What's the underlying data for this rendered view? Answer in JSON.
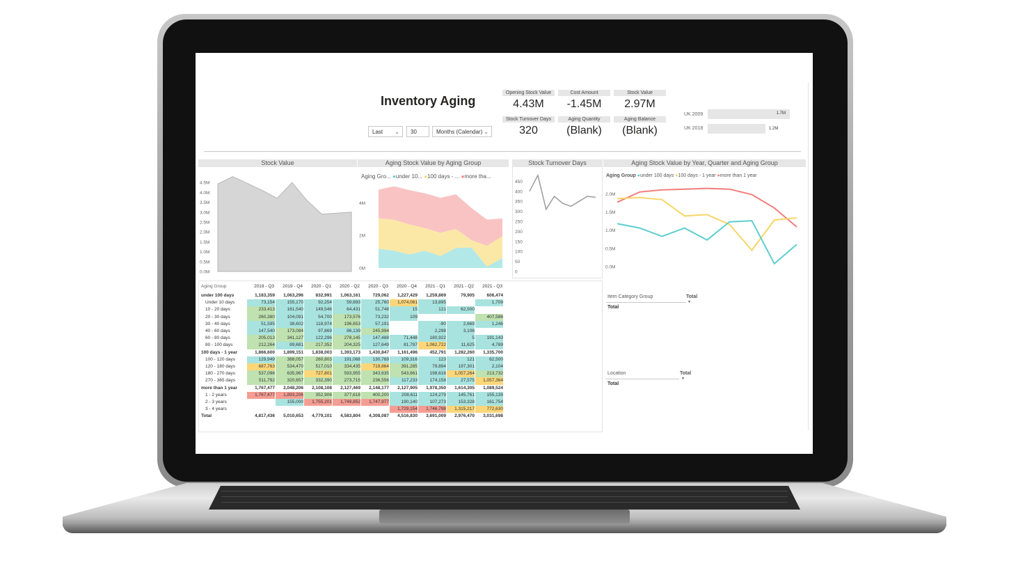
{
  "dashboard": {
    "title": "Inventory Aging",
    "filter": {
      "relative": "Last",
      "count": "30",
      "unit": "Months (Calendar)"
    }
  },
  "kpis": [
    {
      "label": "Opening Stock Value",
      "value": "4.43M"
    },
    {
      "label": "Cost Amount",
      "value": "-1.45M"
    },
    {
      "label": "Stock Value",
      "value": "2.97M"
    },
    {
      "label": "Stock Turnover Days",
      "value": "320"
    },
    {
      "label": "Aging Quantity",
      "value": "(Blank)"
    },
    {
      "label": "Aging Balance",
      "value": "(Blank)"
    }
  ],
  "company_bars": [
    {
      "label": "UK 2009",
      "value": "1.7M",
      "amount": 1.7
    },
    {
      "label": "UK 2018",
      "value": "1.2M",
      "amount": 1.2
    }
  ],
  "visual_titles": {
    "stock_value": "Stock Value",
    "aging_by_group": "Aging Stock Value by Aging Group",
    "turnover": "Stock Turnover Days",
    "by_year": "Aging Stock Value by Year, Quarter and Aging Group"
  },
  "legend_short": {
    "title": "Aging Gro...",
    "items": [
      "under 10...",
      "100 days - ...",
      "more tha..."
    ]
  },
  "legend_full": {
    "title": "Aging Group",
    "items": [
      "under 100 days",
      "100 days - 1 year",
      "more than 1 year"
    ]
  },
  "colors": {
    "teal": "#5ecdcd",
    "yellow": "#f7d567",
    "red": "#f47c7c",
    "grey": "#cfcfcf"
  },
  "chart_data": [
    {
      "type": "area",
      "title": "Stock Value",
      "y_ticks": [
        "0.0M",
        "0.5M",
        "1.0M",
        "1.5M",
        "2.0M",
        "2.5M",
        "3.0M",
        "3.5M",
        "4.0M",
        "4.5M"
      ],
      "ylim": [
        0,
        5.0
      ],
      "values": [
        4.43,
        4.8,
        4.45,
        4.1,
        3.7,
        4.5,
        3.6,
        2.9,
        2.95,
        3.0
      ]
    },
    {
      "type": "area",
      "title": "Aging Stock Value by Aging Group",
      "y_ticks": [
        "0M",
        "2M",
        "4M"
      ],
      "ylim": [
        0,
        5.0
      ],
      "series": [
        {
          "name": "under 100 days",
          "values": [
            1.18,
            1.06,
            0.83,
            1.06,
            0.73,
            1.23,
            1.26,
            0.08,
            0.61
          ]
        },
        {
          "name": "100 days - 1 year",
          "values": [
            1.87,
            1.9,
            1.84,
            1.39,
            1.43,
            1.16,
            0.45,
            1.28,
            1.34
          ]
        },
        {
          "name": "more than 1 year",
          "values": [
            1.77,
            2.05,
            2.11,
            2.13,
            2.15,
            2.13,
            1.98,
            1.61,
            1.09
          ]
        }
      ]
    },
    {
      "type": "line",
      "title": "Stock Turnover Days",
      "y_ticks": [
        "0",
        "50",
        "100",
        "150",
        "200",
        "250",
        "300",
        "350",
        "400",
        "450"
      ],
      "ylim": [
        0,
        500
      ],
      "values": [
        400,
        480,
        310,
        375,
        340,
        325,
        350,
        375,
        370
      ]
    },
    {
      "type": "line",
      "title": "Aging Stock Value by Year, Quarter and Aging Group",
      "y_ticks": [
        "0.0M",
        "0.5M",
        "1.0M",
        "1.5M",
        "2.0M"
      ],
      "ylim": [
        0,
        2.2
      ],
      "series": [
        {
          "name": "under 100 days",
          "values": [
            1.18,
            1.06,
            0.83,
            1.06,
            0.73,
            1.23,
            1.26,
            0.08,
            0.61
          ]
        },
        {
          "name": "100 days - 1 year",
          "values": [
            1.87,
            1.9,
            1.84,
            1.39,
            1.43,
            1.16,
            0.45,
            1.28,
            1.34
          ]
        },
        {
          "name": "more than 1 year",
          "values": [
            1.77,
            2.05,
            2.11,
            2.13,
            2.15,
            2.13,
            1.98,
            1.61,
            1.09
          ]
        }
      ]
    }
  ],
  "matrix": {
    "corner": "Aging Group",
    "columns": [
      "2019 - Q3",
      "2019 - Q4",
      "2020 - Q1",
      "2020 - Q2",
      "2020 - Q3",
      "2020 - Q4",
      "2021 - Q1",
      "2021 - Q2",
      "2021 - Q3"
    ],
    "rows": [
      {
        "label": "under 100 days",
        "bold": true,
        "cells": [
          "1,183,359",
          "1,063,296",
          "832,991",
          "1,063,161",
          "729,062",
          "1,227,429",
          "1,259,869",
          "79,905",
          "606,474"
        ],
        "bg": [
          "",
          "",
          "",
          "",
          "",
          "",
          "",
          "",
          ""
        ]
      },
      {
        "label": "Under 10 days",
        "bold": false,
        "cells": [
          "73,154",
          "155,170",
          "92,254",
          "59,693",
          "25,760",
          "1,074,061",
          "13,895",
          "",
          "1,709"
        ],
        "bg": [
          "t",
          "t",
          "t",
          "t",
          "t",
          "y",
          "t",
          "",
          "t"
        ]
      },
      {
        "label": "10 - 20 days",
        "bold": false,
        "cells": [
          "233,413",
          "161,540",
          "149,546",
          "64,431",
          "51,748",
          "15",
          "121",
          "62,500",
          ""
        ],
        "bg": [
          "g",
          "t",
          "t",
          "t",
          "t",
          "t",
          "t",
          "t",
          ""
        ]
      },
      {
        "label": "20 - 30 days",
        "bold": false,
        "cells": [
          "260,380",
          "104,091",
          "54,700",
          "173,576",
          "73,232",
          "109",
          "",
          "",
          "407,586"
        ],
        "bg": [
          "g",
          "t",
          "t",
          "g",
          "t",
          "t",
          "",
          "",
          "g"
        ]
      },
      {
        "label": "30 - 40 days",
        "bold": false,
        "cells": [
          "51,595",
          "38,602",
          "118,974",
          "196,653",
          "57,191",
          "",
          "-90",
          "2,669",
          "1,246"
        ],
        "bg": [
          "t",
          "t",
          "t",
          "g",
          "t",
          "",
          "t",
          "t",
          "t"
        ]
      },
      {
        "label": "40 - 60 days",
        "bold": false,
        "cells": [
          "147,540",
          "173,084",
          "97,869",
          "86,139",
          "245,994",
          "",
          "2,298",
          "3,106",
          ""
        ],
        "bg": [
          "t",
          "g",
          "t",
          "t",
          "g",
          "",
          "t",
          "t",
          ""
        ]
      },
      {
        "label": "60 - 80 days",
        "bold": false,
        "cells": [
          "205,013",
          "341,127",
          "122,296",
          "278,145",
          "147,488",
          "71,448",
          "180,922",
          "5",
          "191,143"
        ],
        "bg": [
          "g",
          "g",
          "t",
          "g",
          "t",
          "t",
          "t",
          "t",
          "t"
        ]
      },
      {
        "label": "80 - 100 days",
        "bold": false,
        "cells": [
          "212,264",
          "89,681",
          "217,352",
          "204,325",
          "127,649",
          "81,797",
          "1,062,722",
          "11,625",
          "4,789"
        ],
        "bg": [
          "g",
          "t",
          "g",
          "g",
          "t",
          "t",
          "y",
          "t",
          "t"
        ]
      },
      {
        "label": "100 days - 1 year",
        "bold": true,
        "cells": [
          "1,866,600",
          "1,899,151",
          "1,838,003",
          "1,393,173",
          "1,430,847",
          "1,161,496",
          "452,791",
          "1,282,260",
          "1,335,700"
        ],
        "bg": [
          "",
          "",
          "",
          "",
          "",
          "",
          "",
          "",
          ""
        ]
      },
      {
        "label": "100 - 120 days",
        "bold": false,
        "cells": [
          "129,949",
          "388,057",
          "260,803",
          "191,068",
          "130,789",
          "109,316",
          "123",
          "121",
          "62,500"
        ],
        "bg": [
          "t",
          "g",
          "g",
          "t",
          "t",
          "t",
          "t",
          "t",
          "t"
        ]
      },
      {
        "label": "120 - 180 days",
        "bold": false,
        "cells": [
          "687,763",
          "534,470",
          "517,010",
          "334,435",
          "719,864",
          "391,285",
          "79,894",
          "197,301",
          "2,104"
        ],
        "bg": [
          "y",
          "g",
          "g",
          "g",
          "y",
          "g",
          "t",
          "t",
          "t"
        ]
      },
      {
        "label": "180 - 270 days",
        "bold": false,
        "cells": [
          "537,096",
          "635,967",
          "727,801",
          "593,955",
          "343,635",
          "543,661",
          "198,616",
          "1,057,264",
          "213,732"
        ],
        "bg": [
          "g",
          "g",
          "y",
          "g",
          "g",
          "g",
          "t",
          "y",
          "g"
        ]
      },
      {
        "label": "270 - 365 days",
        "bold": false,
        "cells": [
          "511,792",
          "320,657",
          "332,390",
          "273,715",
          "236,556",
          "117,233",
          "174,158",
          "27,575",
          "1,057,364"
        ],
        "bg": [
          "g",
          "g",
          "g",
          "g",
          "g",
          "t",
          "t",
          "t",
          "y"
        ]
      },
      {
        "label": "more than 1 year",
        "bold": true,
        "cells": [
          "1,767,477",
          "2,048,206",
          "2,108,108",
          "2,127,469",
          "2,148,177",
          "2,127,905",
          "1,978,350",
          "1,614,305",
          "1,089,524"
        ],
        "bg": [
          "",
          "",
          "",
          "",
          "",
          "",
          "",
          "",
          ""
        ]
      },
      {
        "label": "1 - 2 years",
        "bold": false,
        "cells": [
          "1,767,477",
          "1,893,206",
          "352,906",
          "377,618",
          "400,200",
          "208,611",
          "124,279",
          "145,761",
          "155,139"
        ],
        "bg": [
          "r",
          "r",
          "g",
          "g",
          "g",
          "t",
          "t",
          "t",
          "t"
        ]
      },
      {
        "label": "2 - 3 years",
        "bold": false,
        "cells": [
          "",
          "155,000",
          "1,755,201",
          "1,749,852",
          "1,747,977",
          "190,140",
          "107,273",
          "153,328",
          "161,754"
        ],
        "bg": [
          "",
          "t",
          "r",
          "r",
          "r",
          "t",
          "t",
          "t",
          "t"
        ]
      },
      {
        "label": "3 - 4 years",
        "bold": false,
        "cells": [
          "",
          "",
          "",
          "",
          "",
          "1,729,154",
          "1,746,798",
          "1,315,217",
          "772,630"
        ],
        "bg": [
          "",
          "",
          "",
          "",
          "",
          "r",
          "r",
          "y",
          "y"
        ]
      },
      {
        "label": "Total",
        "bold": true,
        "cells": [
          "4,817,436",
          "5,010,653",
          "4,779,101",
          "4,583,804",
          "4,308,087",
          "4,516,830",
          "3,691,009",
          "2,976,470",
          "3,031,698"
        ],
        "bg": [
          "",
          "",
          "",
          "",
          "",
          "",
          "",
          "",
          ""
        ]
      }
    ]
  },
  "tables": [
    {
      "header": "Item Category Group",
      "col": "Total",
      "row": "Total"
    },
    {
      "header": "Location",
      "col": "Total",
      "row": "Total"
    }
  ]
}
